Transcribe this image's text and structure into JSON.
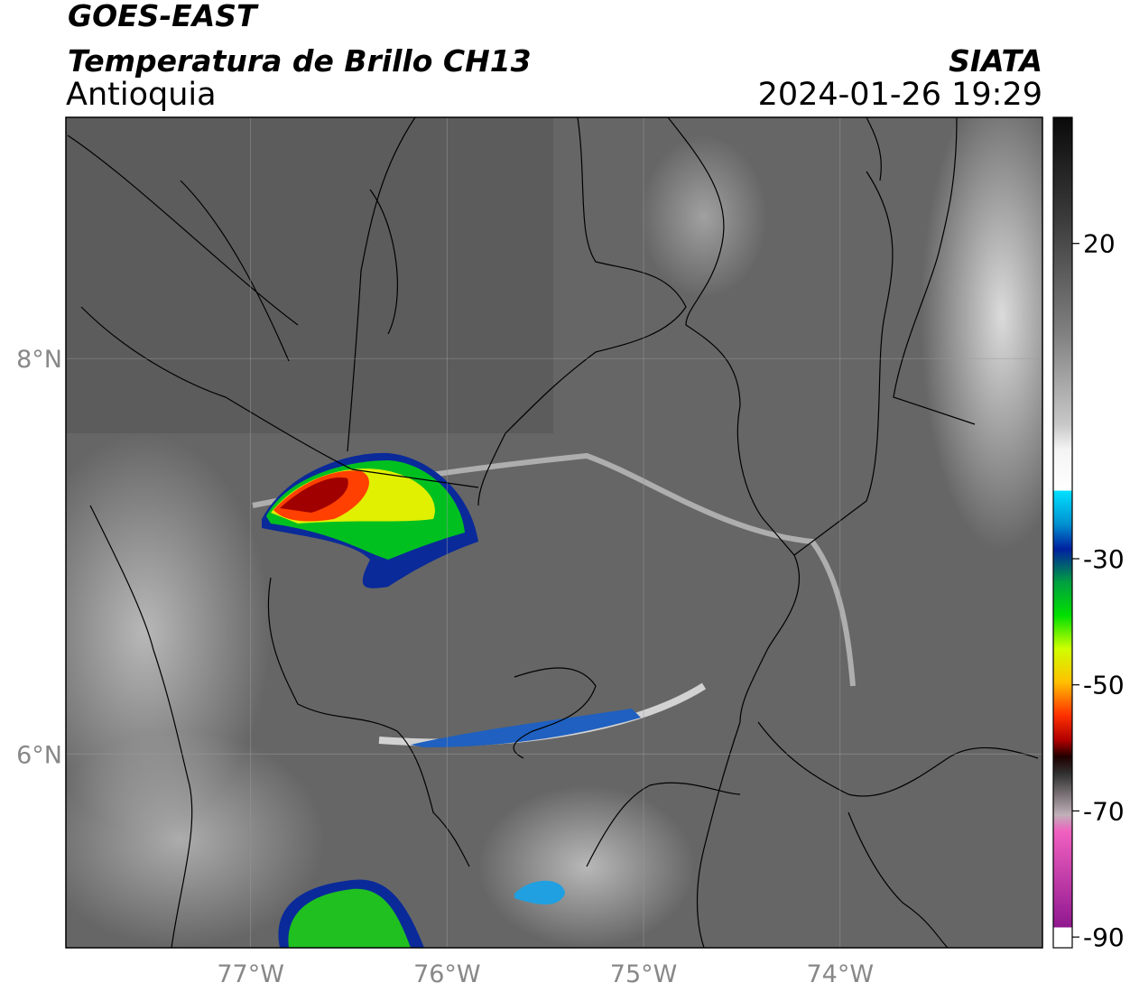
{
  "header": {
    "title": "GOES-EAST",
    "subtitle": "Temperatura de Brillo CH13",
    "region": "Antioquia",
    "source": "SIATA",
    "datetime": "2024-01-26 19:29"
  },
  "map": {
    "lonlim": [
      -77.94,
      -72.97
    ],
    "latlim": [
      5.02,
      9.22
    ],
    "lonticks": [
      {
        "value": -77,
        "label": "77°W"
      },
      {
        "value": -76,
        "label": "76°W"
      },
      {
        "value": -75,
        "label": "75°W"
      },
      {
        "value": -74,
        "label": "74°W"
      }
    ],
    "latticks": [
      {
        "value": 8,
        "label": "8°N"
      },
      {
        "value": 6,
        "label": "6°N"
      }
    ],
    "grid": true
  },
  "colorbar": {
    "range": [
      -91.7,
      40
    ],
    "ticks": [
      20,
      -30,
      -50,
      -70,
      -90
    ]
  }
}
